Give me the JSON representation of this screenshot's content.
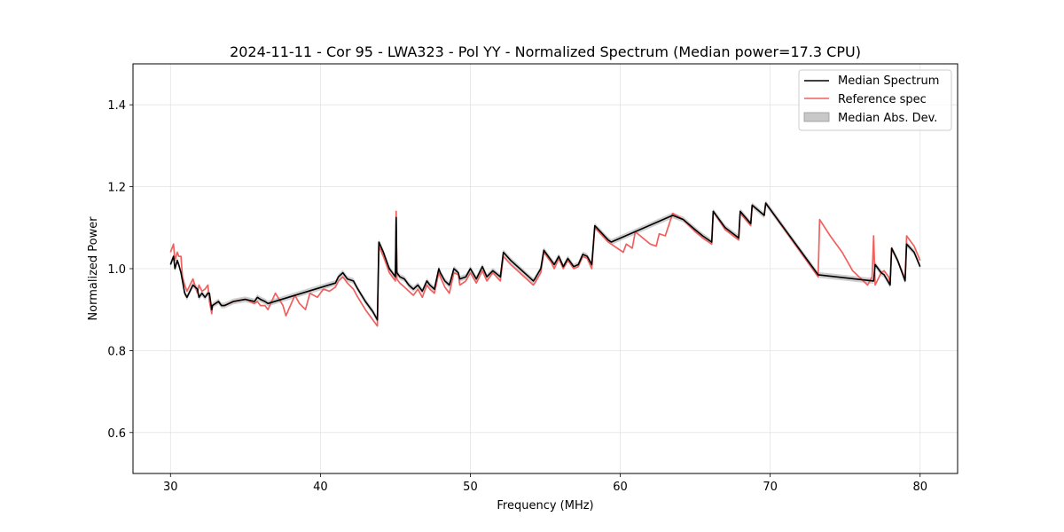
{
  "chart_data": {
    "type": "line",
    "title": "2024-11-11 - Cor 95 - LWA323 - Pol YY - Normalized Spectrum (Median power=17.3 CPU)",
    "xlabel": "Frequency (MHz)",
    "ylabel": "Normalized Power",
    "xlim": [
      27.5,
      82.5
    ],
    "ylim": [
      0.5,
      1.5
    ],
    "xticks": [
      30,
      40,
      50,
      60,
      70,
      80
    ],
    "yticks": [
      0.6,
      0.8,
      1.0,
      1.2,
      1.4
    ],
    "xtick_labels": [
      "30",
      "40",
      "50",
      "60",
      "70",
      "80"
    ],
    "ytick_labels": [
      "0.6",
      "0.8",
      "1.0",
      "1.2",
      "1.4"
    ],
    "grid": true,
    "legend_position": "top-right",
    "legend": [
      "Median Spectrum",
      "Reference spec",
      "Median Abs. Dev."
    ],
    "series": [
      {
        "name": "Median Spectrum",
        "color": "#000000",
        "x": [
          30.0,
          30.2,
          30.3,
          30.45,
          30.55,
          30.7,
          30.8,
          30.95,
          31.1,
          31.5,
          31.8,
          31.9,
          32.1,
          32.3,
          32.5,
          32.6,
          32.75,
          32.8,
          33.2,
          33.4,
          33.6,
          34.2,
          35.0,
          35.6,
          35.8,
          36.0,
          36.3,
          36.5,
          41.0,
          41.2,
          41.5,
          41.8,
          42.2,
          42.5,
          43.0,
          43.5,
          43.8,
          43.9,
          44.2,
          44.6,
          45.0,
          45.05,
          45.1,
          45.3,
          45.6,
          45.9,
          46.2,
          46.5,
          46.8,
          47.1,
          47.3,
          47.6,
          47.9,
          48.0,
          48.3,
          48.6,
          48.9,
          49.2,
          49.3,
          49.7,
          50.0,
          50.4,
          50.8,
          51.1,
          51.5,
          52.0,
          52.2,
          52.7,
          53.3,
          53.9,
          54.2,
          54.3,
          54.7,
          54.9,
          55.4,
          55.6,
          55.9,
          56.2,
          56.5,
          56.9,
          57.2,
          57.5,
          57.8,
          58.1,
          58.3,
          59.2,
          59.4,
          63.5,
          64.2,
          65.0,
          65.5,
          66.1,
          66.2,
          67.0,
          67.9,
          68.0,
          68.7,
          68.8,
          69.6,
          69.7,
          73.2,
          76.9,
          77.0,
          77.4,
          77.6,
          78.0,
          78.1,
          78.5,
          79.0,
          79.1,
          79.6,
          80.0
        ],
        "values": [
          1.01,
          1.03,
          1.0,
          1.02,
          1.01,
          0.99,
          0.97,
          0.94,
          0.93,
          0.96,
          0.95,
          0.93,
          0.94,
          0.93,
          0.94,
          0.94,
          0.9,
          0.91,
          0.92,
          0.91,
          0.91,
          0.92,
          0.925,
          0.92,
          0.93,
          0.925,
          0.92,
          0.915,
          0.965,
          0.98,
          0.99,
          0.975,
          0.97,
          0.95,
          0.92,
          0.895,
          0.875,
          1.065,
          1.04,
          1.0,
          0.98,
          1.125,
          0.99,
          0.98,
          0.975,
          0.96,
          0.95,
          0.96,
          0.945,
          0.97,
          0.96,
          0.95,
          1.0,
          0.99,
          0.97,
          0.96,
          1.0,
          0.99,
          0.975,
          0.98,
          1.0,
          0.975,
          1.005,
          0.98,
          0.995,
          0.98,
          1.04,
          1.02,
          1.0,
          0.98,
          0.97,
          0.975,
          1.0,
          1.045,
          1.02,
          1.01,
          1.03,
          1.005,
          1.025,
          1.005,
          1.01,
          1.035,
          1.03,
          1.01,
          1.105,
          1.07,
          1.065,
          1.13,
          1.12,
          1.095,
          1.08,
          1.065,
          1.14,
          1.1,
          1.075,
          1.14,
          1.11,
          1.155,
          1.13,
          1.16,
          0.985,
          0.97,
          1.01,
          0.99,
          0.985,
          0.96,
          1.05,
          1.02,
          0.97,
          1.06,
          1.04,
          1.005
        ]
      },
      {
        "name": "Reference spec",
        "color": "#f0605f",
        "x": [
          30.0,
          30.2,
          30.3,
          30.45,
          30.55,
          30.7,
          30.8,
          30.95,
          31.1,
          31.5,
          31.8,
          31.9,
          32.1,
          32.3,
          32.5,
          32.6,
          32.75,
          32.8,
          33.2,
          33.4,
          33.6,
          34.2,
          35.0,
          35.6,
          35.8,
          36.0,
          36.3,
          36.5,
          37.0,
          37.5,
          37.7,
          38.3,
          38.6,
          39.0,
          39.3,
          39.8,
          40.2,
          40.6,
          41.0,
          41.2,
          41.5,
          41.8,
          42.2,
          42.5,
          43.0,
          43.5,
          43.8,
          43.9,
          44.2,
          44.6,
          45.0,
          45.05,
          45.1,
          45.3,
          45.6,
          45.9,
          46.2,
          46.5,
          46.8,
          47.1,
          47.3,
          47.6,
          47.9,
          48.0,
          48.3,
          48.6,
          48.9,
          49.2,
          49.3,
          49.7,
          50.0,
          50.4,
          50.8,
          51.1,
          51.5,
          52.0,
          52.2,
          52.7,
          53.3,
          53.9,
          54.2,
          54.3,
          54.7,
          54.9,
          55.4,
          55.6,
          55.9,
          56.2,
          56.5,
          56.9,
          57.2,
          57.5,
          57.8,
          58.1,
          58.3,
          59.2,
          59.4,
          60.2,
          60.4,
          60.6,
          60.8,
          61.0,
          62.0,
          62.4,
          62.6,
          63.0,
          63.5,
          64.2,
          65.0,
          65.5,
          66.1,
          66.2,
          67.0,
          67.9,
          68.0,
          68.7,
          68.8,
          69.6,
          69.7,
          73.2,
          73.3,
          74.0,
          74.8,
          75.5,
          76.5,
          76.8,
          76.9,
          77.0,
          77.4,
          77.6,
          77.9,
          78.0,
          78.1,
          78.5,
          79.0,
          79.1,
          79.6,
          80.0
        ],
        "values": [
          1.04,
          1.06,
          1.02,
          1.04,
          1.03,
          1.03,
          0.98,
          0.96,
          0.945,
          0.975,
          0.94,
          0.96,
          0.945,
          0.95,
          0.96,
          0.92,
          0.89,
          0.91,
          0.92,
          0.91,
          0.91,
          0.92,
          0.925,
          0.915,
          0.92,
          0.91,
          0.91,
          0.9,
          0.94,
          0.91,
          0.885,
          0.935,
          0.915,
          0.9,
          0.94,
          0.93,
          0.95,
          0.945,
          0.955,
          0.97,
          0.98,
          0.965,
          0.95,
          0.93,
          0.9,
          0.875,
          0.86,
          1.055,
          1.03,
          0.99,
          0.97,
          1.14,
          0.975,
          0.965,
          0.955,
          0.945,
          0.935,
          0.95,
          0.93,
          0.96,
          0.95,
          0.94,
          0.99,
          0.98,
          0.955,
          0.94,
          0.99,
          0.985,
          0.96,
          0.97,
          0.99,
          0.965,
          0.995,
          0.97,
          0.99,
          0.97,
          1.03,
          1.01,
          0.99,
          0.97,
          0.96,
          0.965,
          0.99,
          1.04,
          1.015,
          1.0,
          1.025,
          1.0,
          1.02,
          1.0,
          1.005,
          1.03,
          1.025,
          1.0,
          1.1,
          1.065,
          1.06,
          1.04,
          1.06,
          1.055,
          1.05,
          1.09,
          1.06,
          1.055,
          1.085,
          1.08,
          1.135,
          1.12,
          1.09,
          1.075,
          1.06,
          1.14,
          1.095,
          1.07,
          1.135,
          1.105,
          1.155,
          1.13,
          1.16,
          0.98,
          1.12,
          1.08,
          1.04,
          0.995,
          0.96,
          0.98,
          1.08,
          0.96,
          0.99,
          0.995,
          0.98,
          0.965,
          1.05,
          1.02,
          0.975,
          1.08,
          1.055,
          1.02
        ]
      }
    ],
    "band": {
      "name": "Median Abs. Dev.",
      "color": "#bfbfbf",
      "mad": 0.007
    }
  }
}
